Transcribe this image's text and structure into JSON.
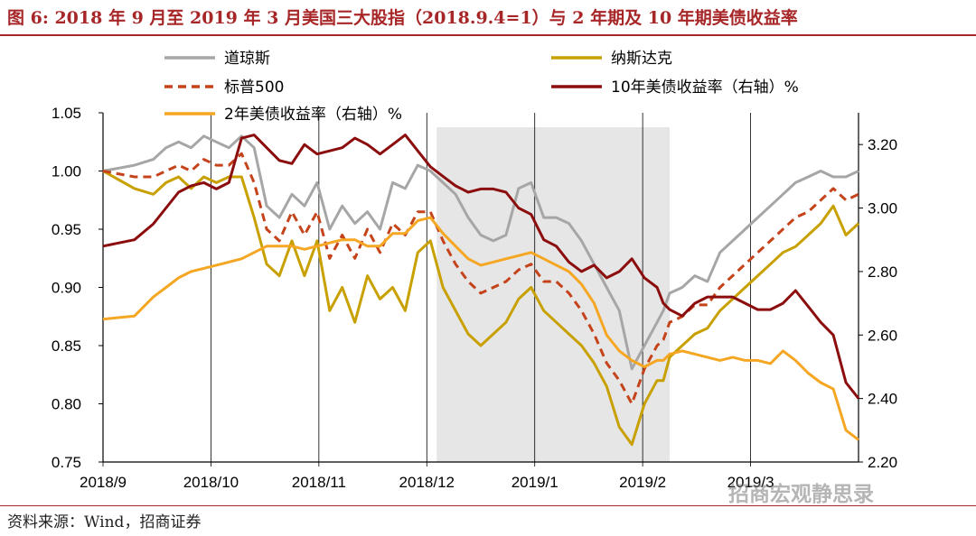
{
  "header": {
    "title": "图 6:   2018 年 9 月至 2019 年 3 月美国三大股指（2018.9.4=1）与 2 年期及 10 年期美债收益率"
  },
  "footer": {
    "source": "资料来源：Wind，招商证券",
    "watermark": "招商宏观静思录"
  },
  "colors": {
    "dow": "#a6a6a6",
    "nasdaq": "#c8a000",
    "sp500": "#c5431a",
    "us10y": "#8b0d0d",
    "us2y": "#f5a623",
    "shade": "#e6e6e6"
  },
  "chart_data": {
    "type": "line",
    "title": "2018 年 9 月至 2019 年 3 月美国三大股指（2018.9.4=1）与 2 年期及 10 年期美债收益率",
    "x_labels": [
      "2018/9",
      "2018/10",
      "2018/11",
      "2018/12",
      "2019/1",
      "2019/2",
      "2019/3"
    ],
    "x_range": [
      0,
      120
    ],
    "left_axis": {
      "ylim": [
        0.75,
        1.05
      ],
      "ticks": [
        "0.75",
        "0.80",
        "0.85",
        "0.90",
        "0.95",
        "1.00",
        "1.05"
      ]
    },
    "right_axis": {
      "ylim": [
        2.2,
        3.3
      ],
      "ticks": [
        "2.20",
        "2.40",
        "2.60",
        "2.80",
        "3.00",
        "3.20"
      ]
    },
    "shaded_region": [
      53,
      90
    ],
    "series": [
      {
        "name": "道琼斯",
        "axis": "left",
        "color_key": "dow",
        "style": "solid",
        "x": [
          0,
          5,
          8,
          10,
          12,
          14,
          16,
          18,
          20,
          22,
          24,
          26,
          28,
          30,
          32,
          34,
          36,
          38,
          40,
          42,
          44,
          46,
          48,
          50,
          52,
          54,
          56,
          58,
          60,
          62,
          64,
          66,
          68,
          70,
          72,
          74,
          76,
          78,
          80,
          82,
          84,
          86,
          88,
          89,
          90,
          92,
          94,
          96,
          98,
          100,
          102,
          104,
          106,
          108,
          110,
          112,
          114,
          116,
          118,
          120
        ],
        "y": [
          1.0,
          1.005,
          1.01,
          1.02,
          1.025,
          1.02,
          1.03,
          1.025,
          1.02,
          1.03,
          1.02,
          0.97,
          0.96,
          0.98,
          0.97,
          0.99,
          0.95,
          0.97,
          0.955,
          0.965,
          0.95,
          0.99,
          0.985,
          1.005,
          1.0,
          0.99,
          0.98,
          0.96,
          0.945,
          0.94,
          0.945,
          0.985,
          0.99,
          0.96,
          0.96,
          0.955,
          0.94,
          0.92,
          0.9,
          0.88,
          0.83,
          0.85,
          0.87,
          0.88,
          0.895,
          0.9,
          0.91,
          0.905,
          0.93,
          0.94,
          0.95,
          0.96,
          0.97,
          0.98,
          0.99,
          0.995,
          1.0,
          0.995,
          0.995,
          1.0
        ]
      },
      {
        "name": "纳斯达克",
        "axis": "left",
        "color_key": "nasdaq",
        "style": "solid",
        "x": [
          0,
          5,
          8,
          10,
          12,
          14,
          16,
          18,
          20,
          22,
          24,
          26,
          28,
          30,
          32,
          34,
          36,
          38,
          40,
          42,
          44,
          46,
          48,
          50,
          52,
          54,
          56,
          58,
          60,
          62,
          64,
          66,
          68,
          70,
          72,
          74,
          76,
          78,
          80,
          82,
          84,
          86,
          88,
          89,
          90,
          92,
          94,
          96,
          98,
          100,
          102,
          104,
          106,
          108,
          110,
          112,
          114,
          116,
          118,
          120
        ],
        "y": [
          1.0,
          0.985,
          0.98,
          0.99,
          0.995,
          0.985,
          0.995,
          0.99,
          0.995,
          0.995,
          0.96,
          0.92,
          0.91,
          0.94,
          0.91,
          0.94,
          0.88,
          0.9,
          0.87,
          0.91,
          0.89,
          0.9,
          0.88,
          0.93,
          0.94,
          0.9,
          0.88,
          0.86,
          0.85,
          0.86,
          0.87,
          0.89,
          0.9,
          0.88,
          0.87,
          0.86,
          0.85,
          0.835,
          0.815,
          0.78,
          0.765,
          0.8,
          0.82,
          0.82,
          0.84,
          0.85,
          0.86,
          0.865,
          0.88,
          0.89,
          0.9,
          0.91,
          0.92,
          0.93,
          0.935,
          0.945,
          0.955,
          0.97,
          0.945,
          0.955
        ]
      },
      {
        "name": "标普500",
        "axis": "left",
        "color_key": "sp500",
        "style": "dashed",
        "x": [
          0,
          5,
          8,
          10,
          12,
          14,
          16,
          18,
          20,
          22,
          24,
          26,
          28,
          30,
          32,
          34,
          36,
          38,
          40,
          42,
          44,
          46,
          48,
          50,
          52,
          54,
          56,
          58,
          60,
          62,
          64,
          66,
          68,
          70,
          72,
          74,
          76,
          78,
          80,
          82,
          84,
          86,
          88,
          89,
          90,
          92,
          94,
          96,
          98,
          100,
          102,
          104,
          106,
          108,
          110,
          112,
          114,
          116,
          118,
          120
        ],
        "y": [
          1.0,
          0.995,
          0.995,
          1.0,
          1.005,
          1.0,
          1.01,
          1.005,
          1.005,
          1.015,
          0.99,
          0.95,
          0.94,
          0.965,
          0.945,
          0.965,
          0.925,
          0.945,
          0.925,
          0.95,
          0.93,
          0.955,
          0.945,
          0.965,
          0.965,
          0.94,
          0.92,
          0.905,
          0.895,
          0.9,
          0.905,
          0.915,
          0.92,
          0.905,
          0.905,
          0.895,
          0.88,
          0.86,
          0.835,
          0.82,
          0.8,
          0.83,
          0.85,
          0.855,
          0.87,
          0.875,
          0.885,
          0.885,
          0.9,
          0.91,
          0.92,
          0.93,
          0.94,
          0.95,
          0.96,
          0.965,
          0.975,
          0.985,
          0.975,
          0.98
        ]
      },
      {
        "name": "10年美债收益率（右轴）%",
        "axis": "right",
        "color_key": "us10y",
        "style": "solid",
        "x": [
          0,
          5,
          8,
          10,
          12,
          14,
          16,
          18,
          20,
          22,
          24,
          26,
          28,
          30,
          32,
          34,
          36,
          38,
          40,
          42,
          44,
          46,
          48,
          50,
          52,
          54,
          56,
          58,
          60,
          62,
          64,
          66,
          68,
          70,
          72,
          74,
          76,
          78,
          80,
          82,
          84,
          86,
          88,
          89,
          90,
          92,
          94,
          96,
          98,
          100,
          102,
          104,
          106,
          108,
          110,
          112,
          114,
          116,
          118,
          120
        ],
        "y": [
          2.88,
          2.9,
          2.95,
          3.0,
          3.05,
          3.07,
          3.08,
          3.06,
          3.08,
          3.22,
          3.23,
          3.19,
          3.15,
          3.14,
          3.2,
          3.17,
          3.18,
          3.19,
          3.22,
          3.2,
          3.17,
          3.2,
          3.23,
          3.18,
          3.13,
          3.1,
          3.07,
          3.05,
          3.06,
          3.06,
          3.05,
          3.0,
          2.98,
          2.9,
          2.88,
          2.83,
          2.8,
          2.82,
          2.78,
          2.8,
          2.84,
          2.78,
          2.75,
          2.7,
          2.68,
          2.66,
          2.7,
          2.72,
          2.72,
          2.72,
          2.7,
          2.68,
          2.68,
          2.7,
          2.74,
          2.69,
          2.64,
          2.6,
          2.45,
          2.4
        ]
      },
      {
        "name": "2年美债收益率（右轴）%",
        "axis": "right",
        "color_key": "us2y",
        "style": "solid",
        "x": [
          0,
          5,
          8,
          10,
          12,
          14,
          16,
          18,
          20,
          22,
          24,
          26,
          28,
          30,
          32,
          34,
          36,
          38,
          40,
          42,
          44,
          46,
          48,
          50,
          52,
          54,
          56,
          58,
          60,
          62,
          64,
          66,
          68,
          70,
          72,
          74,
          76,
          78,
          80,
          82,
          84,
          86,
          88,
          89,
          90,
          92,
          94,
          96,
          98,
          100,
          102,
          104,
          106,
          108,
          110,
          112,
          114,
          116,
          118,
          120
        ],
        "y": [
          2.65,
          2.66,
          2.72,
          2.75,
          2.78,
          2.8,
          2.81,
          2.82,
          2.83,
          2.84,
          2.86,
          2.88,
          2.88,
          2.88,
          2.87,
          2.88,
          2.89,
          2.9,
          2.9,
          2.88,
          2.88,
          2.92,
          2.92,
          2.96,
          2.97,
          2.92,
          2.88,
          2.84,
          2.82,
          2.83,
          2.84,
          2.85,
          2.86,
          2.84,
          2.82,
          2.8,
          2.76,
          2.7,
          2.6,
          2.55,
          2.52,
          2.5,
          2.52,
          2.52,
          2.54,
          2.55,
          2.54,
          2.53,
          2.52,
          2.53,
          2.52,
          2.52,
          2.51,
          2.55,
          2.52,
          2.48,
          2.45,
          2.43,
          2.3,
          2.27
        ]
      }
    ]
  }
}
